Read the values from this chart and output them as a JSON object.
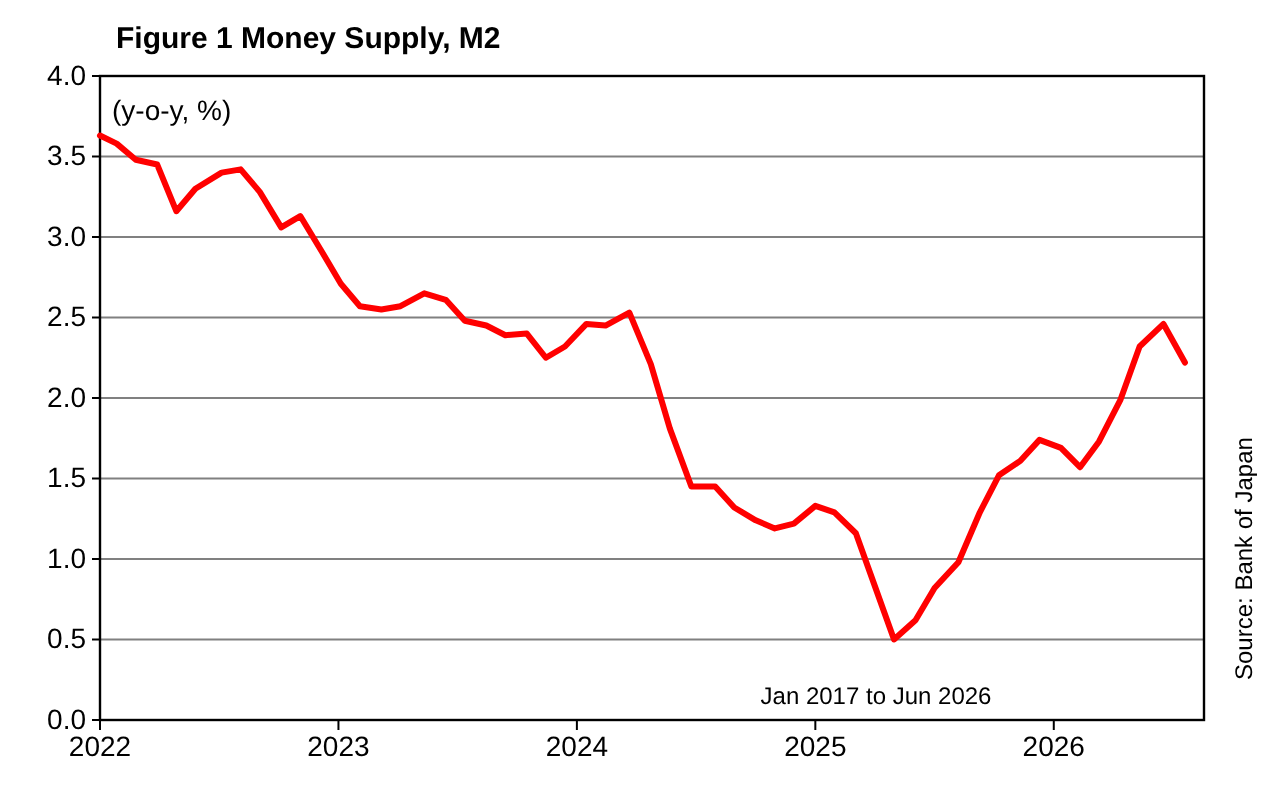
{
  "chart_data": {
    "type": "line",
    "title": "Figure 1  Money Supply, M2",
    "ylabel": "(y-o-y, %)",
    "annotations": [
      "Jan 2017 to Jun 2026",
      "Source: Bank of Japan"
    ],
    "x": [
      2022.0,
      2022.07,
      2022.15,
      2022.24,
      2022.32,
      2022.4,
      2022.51,
      2022.59,
      2022.67,
      2022.76,
      2022.84,
      2022.93,
      2023.01,
      2023.09,
      2023.18,
      2023.26,
      2023.36,
      2023.45,
      2023.53,
      2023.62,
      2023.7,
      2023.79,
      2023.87,
      2023.95,
      2024.04,
      2024.12,
      2024.22,
      2024.31,
      2024.39,
      2024.48,
      2024.58,
      2024.66,
      2024.75,
      2024.83,
      2024.91,
      2025.0,
      2025.08,
      2025.17,
      2025.25,
      2025.33,
      2025.42,
      2025.5,
      2025.6,
      2025.69,
      2025.77,
      2025.86,
      2025.94,
      2026.03,
      2026.11,
      2026.19,
      2026.28,
      2026.36,
      2026.46,
      2026.55
    ],
    "series": [
      {
        "color": "#ff0000",
        "values": [
          3.63,
          3.58,
          3.48,
          3.45,
          3.16,
          3.3,
          3.4,
          3.42,
          3.28,
          3.06,
          3.13,
          2.91,
          2.71,
          2.57,
          2.55,
          2.57,
          2.65,
          2.61,
          2.48,
          2.45,
          2.39,
          2.4,
          2.25,
          2.32,
          2.46,
          2.45,
          2.53,
          2.21,
          1.81,
          1.45,
          1.45,
          1.32,
          1.24,
          1.19,
          1.22,
          1.33,
          1.29,
          1.16,
          0.83,
          0.5,
          0.62,
          0.82,
          0.98,
          1.29,
          1.52,
          1.61,
          1.74,
          1.69,
          1.57,
          1.73,
          1.99,
          2.32,
          2.46,
          2.22
        ]
      }
    ],
    "xlim": [
      2022,
      2026.63
    ],
    "xticks": [
      2022,
      2023,
      2024,
      2025,
      2026
    ],
    "ylim": [
      0,
      4
    ],
    "yticks": [
      {
        "value": 0,
        "label": "0.0"
      },
      {
        "value": 0.5,
        "label": "0.5"
      },
      {
        "value": 1,
        "label": "1.0"
      },
      {
        "value": 1.5,
        "label": "1.5"
      },
      {
        "value": 2,
        "label": "2.0"
      },
      {
        "value": 2.5,
        "label": "2.5"
      },
      {
        "value": 3,
        "label": "3.0"
      },
      {
        "value": 3.5,
        "label": "3.5"
      },
      {
        "value": 4,
        "label": "4.0"
      }
    ],
    "grid": "y",
    "marker": "none",
    "line_style": "solid"
  }
}
